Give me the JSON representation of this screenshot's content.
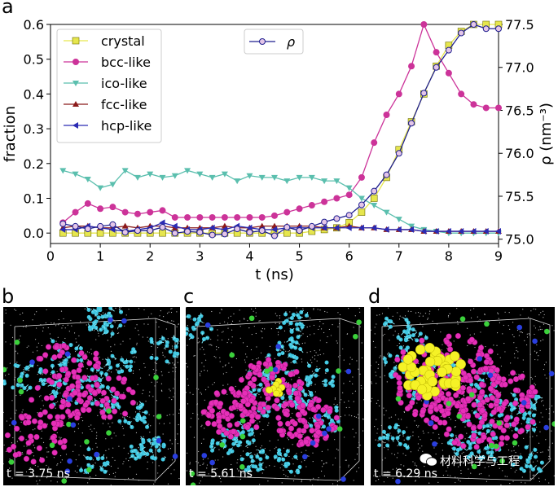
{
  "panel_letters": [
    "a",
    "b",
    "c",
    "d"
  ],
  "snapshot_labels": [
    "t = 3.75 ns",
    "t = 5.61 ns",
    "t = 6.29 ns"
  ],
  "watermark": "材料科学与工程",
  "chart_data": {
    "type": "line",
    "xlabel": "t (ns)",
    "ylabel_left": "fraction",
    "ylabel_right": "ρ (nm⁻³)",
    "xlim": [
      0,
      9
    ],
    "ylim_left": [
      -0.03,
      0.6
    ],
    "ylim_right": [
      74.95,
      77.5
    ],
    "xticks": [
      0,
      1,
      2,
      3,
      4,
      5,
      6,
      7,
      8,
      9
    ],
    "yticks_left": [
      0.0,
      0.1,
      0.2,
      0.3,
      0.4,
      0.5,
      0.6
    ],
    "yticks_right": [
      75.0,
      75.5,
      76.0,
      76.5,
      77.0,
      77.5
    ],
    "x": [
      0.25,
      0.5,
      0.75,
      1.0,
      1.25,
      1.5,
      1.75,
      2.0,
      2.25,
      2.5,
      2.75,
      3.0,
      3.25,
      3.5,
      3.75,
      4.0,
      4.25,
      4.5,
      4.75,
      5.0,
      5.25,
      5.5,
      5.75,
      6.0,
      6.25,
      6.5,
      6.75,
      7.0,
      7.25,
      7.5,
      7.75,
      8.0,
      8.25,
      8.5,
      8.75,
      9.0
    ],
    "series": [
      {
        "name": "crystal",
        "color": "#e6e64d",
        "marker": "square",
        "axis": "left",
        "values": [
          0.0,
          0.0,
          0.0,
          0.0,
          0.0,
          0.0,
          0.0,
          0.0,
          0.0,
          0.0,
          0.0,
          0.0,
          0.0,
          0.0,
          0.0,
          0.0,
          0.0,
          0.0,
          0.0,
          0.0,
          0.005,
          0.01,
          0.015,
          0.03,
          0.06,
          0.1,
          0.16,
          0.24,
          0.32,
          0.4,
          0.48,
          0.54,
          0.58,
          0.6,
          0.6,
          0.6
        ]
      },
      {
        "name": "bcc-like",
        "color": "#cc3399",
        "marker": "circle",
        "axis": "left",
        "values": [
          0.03,
          0.06,
          0.085,
          0.07,
          0.075,
          0.06,
          0.055,
          0.06,
          0.065,
          0.045,
          0.045,
          0.045,
          0.045,
          0.045,
          0.045,
          0.045,
          0.045,
          0.05,
          0.06,
          0.07,
          0.08,
          0.09,
          0.1,
          0.11,
          0.16,
          0.26,
          0.34,
          0.4,
          0.48,
          0.6,
          0.52,
          0.46,
          0.4,
          0.37,
          0.36,
          0.36
        ]
      },
      {
        "name": "ico-like",
        "color": "#5bbfae",
        "marker": "triangle-down",
        "axis": "left",
        "values": [
          0.18,
          0.17,
          0.155,
          0.13,
          0.14,
          0.18,
          0.16,
          0.17,
          0.16,
          0.165,
          0.18,
          0.17,
          0.16,
          0.17,
          0.15,
          0.165,
          0.16,
          0.16,
          0.15,
          0.16,
          0.16,
          0.15,
          0.15,
          0.13,
          0.1,
          0.08,
          0.06,
          0.04,
          0.02,
          0.01,
          0.005,
          0.0,
          0.0,
          0.0,
          0.0,
          0.0
        ]
      },
      {
        "name": "fcc-like",
        "color": "#8b1a1a",
        "marker": "triangle-up",
        "axis": "left",
        "values": [
          0.015,
          0.02,
          0.02,
          0.015,
          0.015,
          0.02,
          0.015,
          0.02,
          0.02,
          0.015,
          0.015,
          0.015,
          0.015,
          0.02,
          0.015,
          0.015,
          0.02,
          0.02,
          0.02,
          0.02,
          0.02,
          0.015,
          0.015,
          0.02,
          0.015,
          0.015,
          0.01,
          0.01,
          0.01,
          0.005,
          0.005,
          0.005,
          0.005,
          0.005,
          0.005,
          0.005
        ]
      },
      {
        "name": "hcp-like",
        "color": "#2b2bb3",
        "marker": "triangle-left",
        "axis": "left",
        "values": [
          0.01,
          0.01,
          0.02,
          0.015,
          0.01,
          0.005,
          0.01,
          0.015,
          0.03,
          0.02,
          0.01,
          0.01,
          0.015,
          0.01,
          0.02,
          0.015,
          0.01,
          0.01,
          0.015,
          0.015,
          0.015,
          0.015,
          0.015,
          0.015,
          0.015,
          0.015,
          0.01,
          0.01,
          0.01,
          0.005,
          0.005,
          0.005,
          0.005,
          0.005,
          0.005,
          0.005
        ]
      },
      {
        "name": "ρ",
        "color": "#1f1f8f",
        "marker": "circle-open",
        "axis": "right",
        "values": [
          75.18,
          75.15,
          75.12,
          75.15,
          75.17,
          75.08,
          75.1,
          75.1,
          75.14,
          75.07,
          75.09,
          75.08,
          75.05,
          75.06,
          75.12,
          75.08,
          75.1,
          75.04,
          75.14,
          75.1,
          75.15,
          75.2,
          75.24,
          75.28,
          75.4,
          75.56,
          75.75,
          76.0,
          76.35,
          76.7,
          77.0,
          77.2,
          77.4,
          77.5,
          77.45,
          77.45
        ]
      }
    ],
    "legend_right": {
      "label": "ρ"
    }
  },
  "snapshots": [
    {
      "seed": 11,
      "yellow": 0,
      "magenta": 160
    },
    {
      "seed": 23,
      "yellow": 10,
      "magenta": 240
    },
    {
      "seed": 37,
      "yellow": 45,
      "magenta": 300
    }
  ]
}
